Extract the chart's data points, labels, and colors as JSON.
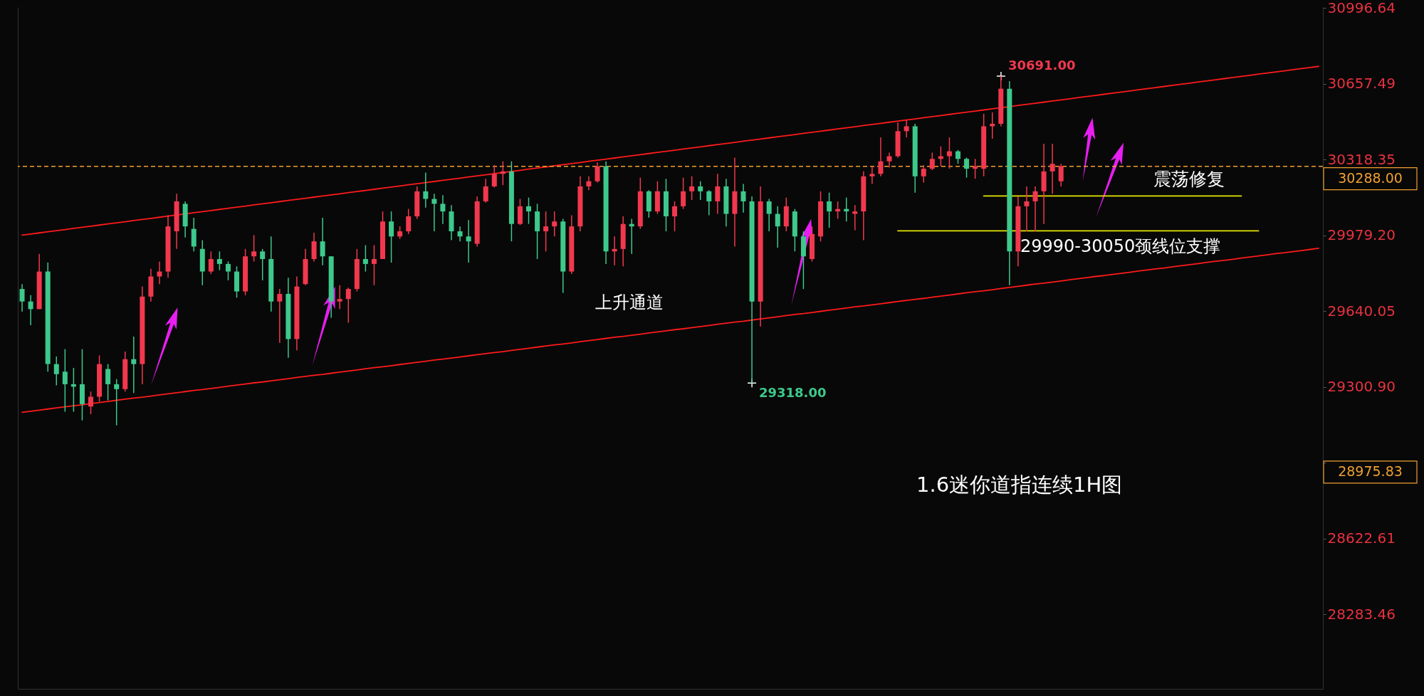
{
  "chart_data": {
    "type": "candlestick",
    "categories": [
      null,
      null,
      null,
      null,
      null,
      null,
      null,
      null,
      null,
      null,
      null,
      null,
      null,
      null,
      null,
      null,
      null,
      null,
      null,
      null,
      null,
      null,
      null,
      null,
      null,
      null,
      null,
      null,
      null,
      null,
      null,
      null,
      null,
      null,
      null,
      null,
      null,
      null,
      null,
      null,
      null,
      null,
      null,
      null,
      null,
      null,
      null,
      null,
      null,
      null,
      null,
      null,
      null,
      null,
      null,
      null,
      null,
      null,
      null,
      null,
      null,
      null,
      null,
      null,
      null,
      null,
      null,
      null,
      null,
      null,
      null,
      null,
      null,
      null,
      null,
      null,
      null,
      null,
      null,
      null,
      null,
      null,
      null,
      null,
      null,
      null,
      null,
      null,
      null,
      null,
      null,
      null,
      null,
      null,
      null,
      null,
      null,
      null,
      null,
      null,
      null,
      null,
      null,
      null,
      null,
      null,
      null,
      null,
      null,
      null,
      null,
      null,
      null,
      null,
      null,
      null,
      null,
      null,
      null,
      null,
      null,
      null,
      null,
      null,
      null,
      null,
      null,
      null,
      null,
      null,
      null,
      null,
      null,
      null,
      null,
      null,
      null,
      null,
      null,
      null,
      null,
      null,
      null,
      null,
      null,
      null,
      null,
      null,
      null,
      null,
      null,
      null
    ],
    "ohlc": [
      [
        29739,
        29761,
        29638,
        29683
      ],
      [
        29683,
        29711,
        29577,
        29649
      ],
      [
        29649,
        29896,
        29649,
        29817
      ],
      [
        29817,
        29857,
        29369,
        29403
      ],
      [
        29403,
        29437,
        29308,
        29358
      ],
      [
        29369,
        29470,
        29190,
        29313
      ],
      [
        29313,
        29386,
        29190,
        29302
      ],
      [
        29313,
        29470,
        29151,
        29224
      ],
      [
        29213,
        29280,
        29179,
        29257
      ],
      [
        29257,
        29442,
        29235,
        29403
      ],
      [
        29381,
        29403,
        29241,
        29313
      ],
      [
        29313,
        29336,
        29129,
        29291
      ],
      [
        29291,
        29459,
        29280,
        29425
      ],
      [
        29425,
        29526,
        29274,
        29403
      ],
      [
        29403,
        29750,
        29313,
        29705
      ],
      [
        29705,
        29829,
        29683,
        29795
      ],
      [
        29795,
        29862,
        29761,
        29817
      ],
      [
        29817,
        30069,
        29789,
        30019
      ],
      [
        29997,
        30165,
        29918,
        30131
      ],
      [
        30120,
        30131,
        29969,
        30019
      ],
      [
        30008,
        30058,
        29907,
        29929
      ],
      [
        29918,
        29957,
        29756,
        29817
      ],
      [
        29817,
        29907,
        29806,
        29873
      ],
      [
        29873,
        29907,
        29823,
        29851
      ],
      [
        29851,
        29862,
        29778,
        29817
      ],
      [
        29817,
        29840,
        29700,
        29728
      ],
      [
        29728,
        29918,
        29711,
        29885
      ],
      [
        29885,
        29980,
        29862,
        29907
      ],
      [
        29907,
        29918,
        29778,
        29873
      ],
      [
        29873,
        29974,
        29638,
        29683
      ],
      [
        29683,
        29739,
        29498,
        29717
      ],
      [
        29717,
        29789,
        29431,
        29515
      ],
      [
        29515,
        29795,
        29465,
        29750
      ],
      [
        29761,
        29918,
        29756,
        29873
      ],
      [
        29873,
        29991,
        29862,
        29952
      ],
      [
        29952,
        30058,
        29845,
        29885
      ],
      [
        29885,
        29885,
        29610,
        29683
      ],
      [
        29683,
        29756,
        29649,
        29694
      ],
      [
        29694,
        29745,
        29588,
        29739
      ],
      [
        29739,
        29918,
        29728,
        29873
      ],
      [
        29873,
        29935,
        29817,
        29851
      ],
      [
        29851,
        29935,
        29756,
        29873
      ],
      [
        29873,
        30086,
        29873,
        30041
      ],
      [
        30041,
        30086,
        29857,
        29974
      ],
      [
        29974,
        30019,
        29963,
        29997
      ],
      [
        29997,
        30097,
        29985,
        30064
      ],
      [
        30064,
        30198,
        30053,
        30176
      ],
      [
        30176,
        30260,
        30103,
        30142
      ],
      [
        30142,
        30165,
        29997,
        30120
      ],
      [
        30120,
        30159,
        30030,
        30086
      ],
      [
        30086,
        30114,
        29957,
        29997
      ],
      [
        29997,
        30019,
        29952,
        29974
      ],
      [
        29974,
        30047,
        29857,
        29952
      ],
      [
        29941,
        30153,
        29929,
        30131
      ],
      [
        30131,
        30232,
        30125,
        30198
      ],
      [
        30198,
        30293,
        30193,
        30254
      ],
      [
        30254,
        30310,
        30204,
        30265
      ],
      [
        30265,
        30310,
        29952,
        30030
      ],
      [
        30030,
        30142,
        30025,
        30109
      ],
      [
        30109,
        30148,
        30030,
        30086
      ],
      [
        30086,
        30120,
        29873,
        29997
      ],
      [
        29997,
        30086,
        29907,
        30019
      ],
      [
        30019,
        30086,
        29974,
        30041
      ],
      [
        30041,
        30053,
        29722,
        29817
      ],
      [
        29817,
        30069,
        29806,
        30019
      ],
      [
        30019,
        30243,
        29997,
        30198
      ],
      [
        30198,
        30243,
        30181,
        30221
      ],
      [
        30221,
        30305,
        30215,
        30288
      ],
      [
        30288,
        30310,
        29851,
        29907
      ],
      [
        29907,
        29974,
        29845,
        29918
      ],
      [
        29918,
        30064,
        29840,
        30030
      ],
      [
        30030,
        30053,
        29896,
        30019
      ],
      [
        30019,
        30237,
        30008,
        30176
      ],
      [
        30176,
        30181,
        30058,
        30086
      ],
      [
        30086,
        30221,
        30075,
        30176
      ],
      [
        30176,
        30232,
        29997,
        30064
      ],
      [
        30064,
        30131,
        29997,
        30109
      ],
      [
        30109,
        30237,
        30097,
        30176
      ],
      [
        30176,
        30243,
        30137,
        30198
      ],
      [
        30198,
        30221,
        30137,
        30176
      ],
      [
        30176,
        30181,
        30069,
        30131
      ],
      [
        30131,
        30254,
        30075,
        30198
      ],
      [
        30198,
        30232,
        30019,
        30075
      ],
      [
        30075,
        30327,
        29929,
        30176
      ],
      [
        30176,
        30209,
        30081,
        30131
      ],
      [
        30131,
        30153,
        29318,
        29683
      ],
      [
        29683,
        30198,
        29571,
        30131
      ],
      [
        30131,
        30142,
        29997,
        30075
      ],
      [
        30075,
        30109,
        29924,
        30019
      ],
      [
        30019,
        30148,
        29997,
        30109
      ],
      [
        30086,
        30097,
        29907,
        29974
      ],
      [
        29974,
        29997,
        29739,
        29885
      ],
      [
        29873,
        30019,
        29862,
        29985
      ],
      [
        29974,
        30176,
        29952,
        30131
      ],
      [
        30131,
        30170,
        30013,
        30086
      ],
      [
        30086,
        30131,
        30053,
        30097
      ],
      [
        30097,
        30148,
        30041,
        30086
      ],
      [
        30075,
        30114,
        30002,
        30086
      ],
      [
        30086,
        30265,
        29957,
        30243
      ],
      [
        30243,
        30288,
        30209,
        30254
      ],
      [
        30254,
        30417,
        30243,
        30310
      ],
      [
        30310,
        30349,
        30282,
        30333
      ],
      [
        30333,
        30484,
        30327,
        30445
      ],
      [
        30445,
        30495,
        30417,
        30467
      ],
      [
        30467,
        30478,
        30170,
        30243
      ],
      [
        30243,
        30293,
        30215,
        30277
      ],
      [
        30277,
        30349,
        30271,
        30321
      ],
      [
        30321,
        30377,
        30288,
        30333
      ],
      [
        30333,
        30417,
        30277,
        30355
      ],
      [
        30355,
        30361,
        30299,
        30321
      ],
      [
        30321,
        30327,
        30237,
        30277
      ],
      [
        30277,
        30321,
        30232,
        30288
      ],
      [
        30277,
        30523,
        30243,
        30467
      ],
      [
        30467,
        30529,
        30411,
        30478
      ],
      [
        30478,
        30691,
        30467,
        30635
      ],
      [
        30635,
        30669,
        29756,
        29907
      ],
      [
        29907,
        30153,
        29840,
        30109
      ],
      [
        30109,
        30198,
        29997,
        30131
      ],
      [
        30131,
        30198,
        29997,
        30176
      ],
      [
        30176,
        30389,
        30030,
        30265
      ],
      [
        30265,
        30389,
        30165,
        30299
      ],
      [
        30221,
        30299,
        30198,
        30288
      ],
      null,
      null,
      null,
      null,
      null,
      null,
      null,
      null,
      null,
      null,
      null,
      null,
      null,
      null,
      null,
      null,
      null,
      null,
      null,
      null,
      null,
      null,
      null,
      null,
      null,
      null,
      null,
      null,
      null,
      null
    ],
    "colors": [
      "#3dc98c",
      "#3dc98c",
      "#f2384e",
      "#3dc98c",
      "#3dc98c",
      "#3dc98c",
      "#3dc98c",
      "#3dc98c",
      "#f2384e",
      "#f2384e",
      "#3dc98c",
      "#3dc98c",
      "#f2384e",
      "#3dc98c",
      "#f2384e",
      "#f2384e",
      "#f2384e",
      "#f2384e",
      "#f2384e",
      "#3dc98c",
      "#3dc98c",
      "#3dc98c",
      "#f2384e",
      "#3dc98c",
      "#3dc98c",
      "#3dc98c",
      "#f2384e",
      "#f2384e",
      "#3dc98c",
      "#3dc98c",
      "#f2384e",
      "#3dc98c",
      "#f2384e",
      "#f2384e",
      "#f2384e",
      "#3dc98c",
      "#3dc98c",
      "#f2384e",
      "#f2384e",
      "#f2384e",
      "#3dc98c",
      "#f2384e",
      "#f2384e",
      "#3dc98c",
      "#f2384e",
      "#f2384e",
      "#f2384e",
      "#3dc98c",
      "#3dc98c",
      "#3dc98c",
      "#3dc98c",
      "#3dc98c",
      "#3dc98c",
      "#f2384e",
      "#f2384e",
      "#f2384e",
      "#f2384e",
      "#3dc98c",
      "#f2384e",
      "#3dc98c",
      "#3dc98c",
      "#f2384e",
      "#f2384e",
      "#3dc98c",
      "#f2384e",
      "#f2384e",
      "#f2384e",
      "#f2384e",
      "#3dc98c",
      "#f2384e",
      "#f2384e",
      "#3dc98c",
      "#f2384e",
      "#3dc98c",
      "#f2384e",
      "#3dc98c",
      "#f2384e",
      "#f2384e",
      "#f2384e",
      "#3dc98c",
      "#3dc98c",
      "#f2384e",
      "#3dc98c",
      "#f2384e",
      "#3dc98c",
      "#3dc98c",
      "#f2384e",
      "#3dc98c",
      "#3dc98c",
      "#f2384e",
      "#3dc98c",
      "#3dc98c",
      "#f2384e",
      "#f2384e",
      "#3dc98c",
      "#f2384e",
      "#3dc98c",
      "#f2384e",
      "#f2384e",
      "#f2384e",
      "#f2384e",
      "#f2384e",
      "#f2384e",
      "#f2384e",
      "#3dc98c",
      "#f2384e",
      "#f2384e",
      "#f2384e",
      "#f2384e",
      "#3dc98c",
      "#3dc98c",
      "#f2384e",
      "#f2384e",
      "#f2384e",
      "#f2384e",
      "#3dc98c",
      "#f2384e",
      "#f2384e",
      "#f2384e",
      "#f2384e",
      "#f2384e",
      "#f2384e",
      null,
      null,
      null,
      null,
      null,
      null,
      null,
      null,
      null,
      null,
      null,
      null,
      null,
      null,
      null,
      null,
      null,
      null,
      null,
      null,
      null,
      null,
      null,
      null,
      null,
      null,
      null,
      null,
      null,
      null
    ],
    "series": [
      {
        "type": "line",
        "color": "#ff1a1a",
        "values": [
          29980,
          29985,
          29990,
          29995,
          30000,
          30005,
          30010,
          30015,
          30020,
          30025,
          30030,
          30035,
          30040,
          30045,
          30050,
          30055,
          30060,
          30065,
          30070,
          30075,
          30080,
          30085,
          30090,
          30095,
          30100,
          30105,
          30110,
          30115,
          30120,
          30125,
          30130,
          30135,
          30140,
          30145,
          30150,
          30155,
          30160,
          30165,
          30170,
          30175,
          30180,
          30185,
          30190,
          30195,
          30200,
          30205,
          30210,
          30215,
          30220,
          30225,
          30230,
          30235,
          30240,
          30245,
          30250,
          30255,
          30260,
          30265,
          30270,
          30275,
          30280,
          30285,
          30290,
          30295,
          30300,
          30305,
          30310,
          30315,
          30320,
          30325,
          30330,
          30335,
          30340,
          30345,
          30350,
          30355,
          30360,
          30365,
          30370,
          30375,
          30380,
          30385,
          30390,
          30395,
          30400,
          30405,
          30410,
          30415,
          30420,
          30425,
          30430,
          30435,
          30440,
          30445,
          30450,
          30455,
          30460,
          30465,
          30470,
          30475,
          30480,
          30485,
          30490,
          30495,
          30500,
          30505,
          30510,
          30515,
          30520,
          30525,
          30530,
          30535,
          30540,
          30545,
          30550,
          30555,
          30560,
          30565,
          30570,
          30575,
          30580,
          30585,
          30590,
          30595,
          30600,
          30605,
          30610,
          30615,
          30620,
          30625,
          30630,
          30635,
          30640,
          30645,
          30650,
          30655,
          30660,
          30665,
          30670,
          30675,
          30680,
          30685,
          30690,
          30695,
          30700,
          30705,
          30710,
          30715,
          30720,
          30725,
          30730,
          30735
        ]
      },
      {
        "type": "line",
        "color": "#ff1a1a",
        "values": [
          29187,
          29192,
          29197,
          29202,
          29207,
          29212,
          29217,
          29221,
          29226,
          29231,
          29236,
          29241,
          29246,
          29251,
          29255,
          29260,
          29265,
          29270,
          29275,
          29280,
          29285,
          29289,
          29294,
          29299,
          29304,
          29309,
          29314,
          29319,
          29323,
          29328,
          29333,
          29338,
          29343,
          29348,
          29353,
          29357,
          29362,
          29367,
          29372,
          29377,
          29382,
          29387,
          29391,
          29396,
          29401,
          29406,
          29411,
          29416,
          29421,
          29425,
          29430,
          29435,
          29440,
          29445,
          29450,
          29455,
          29459,
          29464,
          29469,
          29474,
          29479,
          29484,
          29489,
          29493,
          29498,
          29503,
          29508,
          29513,
          29518,
          29523,
          29527,
          29532,
          29537,
          29542,
          29547,
          29552,
          29557,
          29561,
          29566,
          29571,
          29576,
          29581,
          29586,
          29591,
          29595,
          29600,
          29605,
          29610,
          29615,
          29620,
          29625,
          29629,
          29634,
          29639,
          29644,
          29649,
          29654,
          29659,
          29663,
          29668,
          29673,
          29678,
          29683,
          29688,
          29693,
          29697,
          29702,
          29707,
          29712,
          29717,
          29722,
          29727,
          29731,
          29736,
          29741,
          29746,
          29751,
          29756,
          29761,
          29765,
          29770,
          29775,
          29780,
          29785,
          29790,
          29795,
          29799,
          29804,
          29809,
          29814,
          29819,
          29824,
          29829,
          29833,
          29838,
          29843,
          29848,
          29853,
          29858,
          29863,
          29867,
          29872,
          29877,
          29882,
          29887,
          29892,
          29897,
          29901,
          29906,
          29911,
          29916,
          29921
        ]
      },
      {
        "type": "line",
        "color": "#e6e600",
        "values": [
          null,
          null,
          null,
          null,
          null,
          null,
          null,
          null,
          null,
          null,
          null,
          null,
          null,
          null,
          null,
          null,
          null,
          null,
          null,
          null,
          null,
          null,
          null,
          null,
          null,
          null,
          null,
          null,
          null,
          null,
          null,
          null,
          null,
          null,
          null,
          null,
          null,
          null,
          null,
          null,
          null,
          null,
          null,
          null,
          null,
          null,
          null,
          null,
          null,
          null,
          null,
          null,
          null,
          null,
          null,
          null,
          null,
          null,
          null,
          null,
          null,
          null,
          null,
          null,
          null,
          null,
          null,
          null,
          null,
          null,
          null,
          null,
          null,
          null,
          null,
          null,
          null,
          null,
          null,
          null,
          null,
          null,
          null,
          null,
          null,
          null,
          null,
          null,
          null,
          null,
          null,
          null,
          null,
          null,
          null,
          null,
          null,
          null,
          null,
          null,
          null,
          null,
          null,
          null,
          null,
          null,
          null,
          null,
          null,
          null,
          null,
          null,
          30155,
          30155,
          30155,
          30155,
          30155,
          30155,
          30155,
          30155,
          30155,
          30155,
          30155,
          30155,
          30155,
          30155,
          30155,
          30155,
          30155,
          30155,
          30155,
          30155,
          30155,
          30155,
          30155,
          30155,
          30155,
          30155,
          30155,
          30155,
          30155,
          30155,
          30155,
          null,
          null,
          null,
          null,
          null,
          null,
          null,
          null,
          null
        ]
      },
      {
        "type": "line",
        "color": "#e6e600",
        "values": [
          null,
          null,
          null,
          null,
          null,
          null,
          null,
          null,
          null,
          null,
          null,
          null,
          null,
          null,
          null,
          null,
          null,
          null,
          null,
          null,
          null,
          null,
          null,
          null,
          null,
          null,
          null,
          null,
          null,
          null,
          null,
          null,
          null,
          null,
          null,
          null,
          null,
          null,
          null,
          null,
          null,
          null,
          null,
          null,
          null,
          null,
          null,
          null,
          null,
          null,
          null,
          null,
          null,
          null,
          null,
          null,
          null,
          null,
          null,
          null,
          null,
          null,
          null,
          null,
          null,
          null,
          null,
          null,
          null,
          null,
          null,
          null,
          null,
          null,
          null,
          null,
          null,
          null,
          null,
          null,
          null,
          null,
          null,
          null,
          null,
          null,
          null,
          null,
          null,
          null,
          null,
          null,
          null,
          null,
          null,
          null,
          null,
          null,
          null,
          null,
          null,
          null,
          29999,
          29999,
          29999,
          29999,
          29999,
          29999,
          29999,
          29999,
          29999,
          29999,
          29999,
          29999,
          29999,
          29999,
          29999,
          29999,
          29999,
          29999,
          29999,
          29999,
          29999,
          29999,
          29999,
          29999,
          29999,
          29999,
          29999,
          29999,
          29999,
          29999,
          29999,
          29999,
          29999,
          29999,
          29999,
          29999,
          29999,
          29999,
          29999,
          29999,
          29999,
          29999,
          29999,
          null,
          null,
          null,
          null,
          null,
          null,
          null
        ]
      }
    ],
    "ylim": [
      27950,
      31000
    ],
    "yticks": [
      30996.64,
      30657.49,
      30318.35,
      {
        "value": 29979.2,
        "label": "29979.20"
      },
      29640.05,
      {
        "value": 29300.9,
        "label": "29300.90"
      },
      {
        "value": 28961.76,
        "label": null
      },
      28622.61,
      28283.46
    ],
    "tick_labels": "y",
    "ref_lines": [
      {
        "axis": "y",
        "value": 30288,
        "label": "30288.00",
        "color": "#f0a030",
        "line_style": "dashed"
      }
    ],
    "annotations": [
      "上升通道",
      "震荡修复",
      "29990-30050颈线位支撑",
      "1.6迷你道指连续1H图",
      "30691.00",
      "29318.00",
      "28975.83"
    ]
  }
}
